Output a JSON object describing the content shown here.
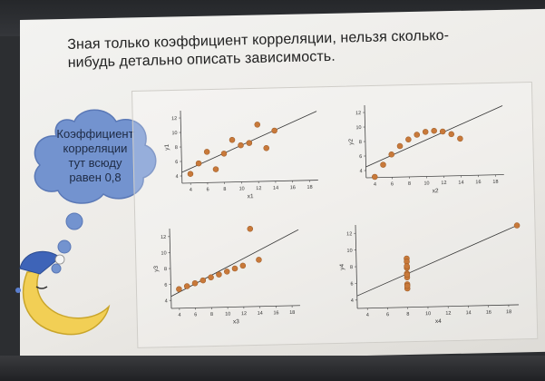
{
  "slide": {
    "heading_line1": "Зная только коэффициент корреляции, нельзя сколько-",
    "heading_line2": "нибудь детально описать зависимость.",
    "cloud_line1": "Коэффициент",
    "cloud_line2": "корреляции",
    "cloud_line3": "тут всюду",
    "cloud_line4": "равен 0,8",
    "point_color": "#c8793a",
    "cloud_color": "#6f90cc"
  },
  "chart_data": [
    {
      "type": "scatter",
      "xlabel": "x1",
      "ylabel": "y1",
      "xlim": [
        3,
        19
      ],
      "ylim": [
        3,
        13
      ],
      "xticks": [
        "4",
        "6",
        "8",
        "10",
        "12",
        "14",
        "16",
        "18"
      ],
      "yticks": [
        "4",
        "6",
        "8",
        "10",
        "12"
      ],
      "x": [
        10,
        8,
        13,
        9,
        11,
        14,
        6,
        4,
        12,
        7,
        5
      ],
      "y": [
        8.04,
        6.95,
        7.58,
        8.81,
        8.33,
        9.96,
        7.24,
        4.26,
        10.84,
        4.82,
        5.68
      ],
      "fit": [
        3,
        0.5
      ]
    },
    {
      "type": "scatter",
      "xlabel": "x2",
      "ylabel": "y2",
      "xlim": [
        3,
        19
      ],
      "ylim": [
        3,
        13
      ],
      "xticks": [
        "4",
        "6",
        "8",
        "10",
        "12",
        "14",
        "16",
        "18"
      ],
      "yticks": [
        "4",
        "6",
        "8",
        "10",
        "12"
      ],
      "x": [
        10,
        8,
        13,
        9,
        11,
        14,
        6,
        4,
        12,
        7,
        5
      ],
      "y": [
        9.14,
        8.14,
        8.74,
        8.77,
        9.26,
        8.1,
        6.13,
        3.1,
        9.13,
        7.26,
        4.74
      ],
      "fit": [
        3,
        0.5
      ]
    },
    {
      "type": "scatter",
      "xlabel": "x3",
      "ylabel": "y3",
      "xlim": [
        3,
        19
      ],
      "ylim": [
        3,
        13
      ],
      "xticks": [
        "4",
        "6",
        "8",
        "10",
        "12",
        "14",
        "16",
        "18"
      ],
      "yticks": [
        "4",
        "6",
        "8",
        "10",
        "12"
      ],
      "x": [
        10,
        8,
        13,
        9,
        11,
        14,
        6,
        4,
        12,
        7,
        5
      ],
      "y": [
        7.46,
        6.77,
        12.74,
        7.11,
        7.81,
        8.84,
        6.08,
        5.39,
        8.15,
        6.42,
        5.73
      ],
      "fit": [
        3,
        0.5
      ]
    },
    {
      "type": "scatter",
      "xlabel": "x4",
      "ylabel": "y4",
      "xlim": [
        3,
        19
      ],
      "ylim": [
        3,
        13
      ],
      "xticks": [
        "4",
        "6",
        "8",
        "10",
        "12",
        "14",
        "16",
        "18"
      ],
      "yticks": [
        "4",
        "6",
        "8",
        "10",
        "12"
      ],
      "x": [
        8,
        8,
        8,
        8,
        8,
        8,
        8,
        19,
        8,
        8,
        8
      ],
      "y": [
        6.58,
        5.76,
        7.71,
        8.84,
        8.47,
        7.04,
        5.25,
        12.5,
        5.56,
        7.91,
        6.89
      ],
      "fit": [
        3,
        0.5
      ]
    }
  ]
}
